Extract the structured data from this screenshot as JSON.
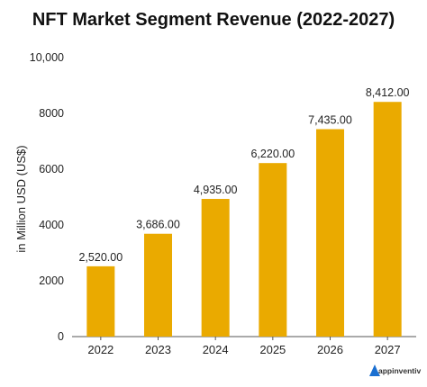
{
  "chart_data": {
    "type": "bar",
    "title": "NFT Market Segment Revenue (2022-2027)",
    "ylabel": "in Million USD (US$)",
    "xlabel": "",
    "categories": [
      "2022",
      "2023",
      "2024",
      "2025",
      "2026",
      "2027"
    ],
    "values": [
      2520,
      3686,
      4935,
      6220,
      7435,
      8412
    ],
    "data_labels": [
      "2,520.00",
      "3,686.00",
      "4,935.00",
      "6,220.00",
      "7,435.00",
      "8,412.00"
    ],
    "ylim": [
      0,
      10000
    ],
    "yticks": [
      0,
      2000,
      4000,
      6000,
      8000,
      10000
    ],
    "ytick_labels": [
      "0",
      "2000",
      "4000",
      "6000",
      "8000",
      "10,000"
    ],
    "grid": false,
    "bar_color": "#EAAA00"
  },
  "brand": {
    "name": "appinventiv",
    "color": "#1a6fd1"
  }
}
